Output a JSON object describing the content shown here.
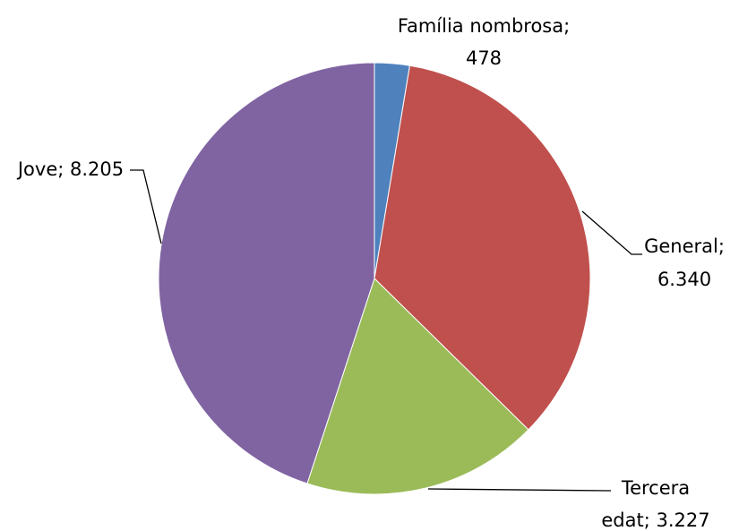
{
  "chart_data": {
    "type": "pie",
    "title": "",
    "slices": [
      {
        "label": "Família nombrosa",
        "value": 478,
        "value_text": "478",
        "color": "#4F81BD"
      },
      {
        "label": "General",
        "value": 6340,
        "value_text": "6.340",
        "color": "#C0504D"
      },
      {
        "label": "Tercera edat",
        "value": 3227,
        "value_text": "3.227",
        "color": "#9BBB59"
      },
      {
        "label": "Jove",
        "value": 8205,
        "value_text": "8.205",
        "color": "#8064A2"
      }
    ],
    "data_labels": [
      {
        "lines": [
          "Família nombrosa;",
          "478"
        ]
      },
      {
        "lines": [
          "General;",
          "6.340"
        ]
      },
      {
        "lines": [
          "Tercera",
          "edat; 3.227"
        ]
      },
      {
        "lines": [
          "Jove; 8.205"
        ]
      }
    ],
    "start_angle": "12 o'clock",
    "direction": "clockwise",
    "legend": "none"
  }
}
